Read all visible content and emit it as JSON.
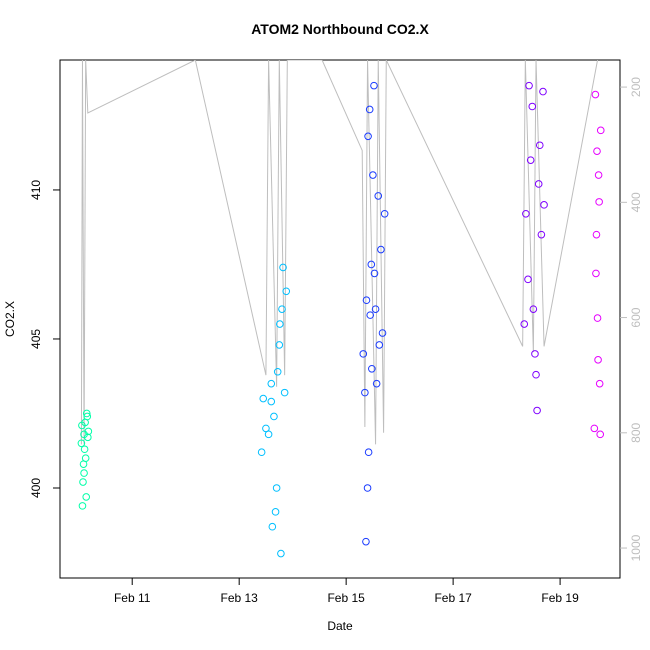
{
  "chart_data": {
    "type": "scatter",
    "title": "ATOM2 Northbound CO2.X",
    "x_label": "Date",
    "y_label": "CO2.X",
    "xlim": [
      9.65,
      20.12
    ],
    "ylim": [
      396.98,
      414.36
    ],
    "y2lim": [
      1052,
      153
    ],
    "xticks": [
      {
        "value": 11,
        "label": "Feb 11"
      },
      {
        "value": 13,
        "label": "Feb 13"
      },
      {
        "value": 15,
        "label": "Feb 15"
      },
      {
        "value": 17,
        "label": "Feb 17"
      },
      {
        "value": 19,
        "label": "Feb 19"
      }
    ],
    "yticks": [
      400,
      405,
      410
    ],
    "y2ticks": [
      200,
      400,
      600,
      800,
      1000
    ],
    "y2_color": "#bebebe",
    "series": [
      {
        "type": "line",
        "axis": "y2",
        "color": "#bebebe",
        "x": [
          10.05,
          10.07,
          10.1,
          10.13,
          10.17,
          12.18,
          13.5,
          13.55,
          13.7,
          13.75,
          13.85,
          13.9,
          14.55,
          15.3,
          15.35,
          15.4,
          15.55,
          15.6,
          15.7,
          15.75,
          18.3,
          18.35,
          18.5,
          18.55,
          18.7,
          19.7
        ],
        "values": [
          820,
          153,
          820,
          153,
          245,
          153,
          700,
          153,
          720,
          153,
          700,
          153,
          153,
          310,
          790,
          153,
          820,
          153,
          800,
          153,
          650,
          153,
          660,
          153,
          650,
          153
        ]
      },
      {
        "color": "#00ffa8",
        "x": [
          10.05,
          10.07,
          10.08,
          10.1,
          10.12,
          10.13,
          10.15,
          10.17,
          10.06,
          10.09,
          10.11,
          10.14,
          10.16,
          10.18,
          10.1
        ],
        "values": [
          401.5,
          399.4,
          400.2,
          401.8,
          402.2,
          401,
          402.5,
          401.7,
          402.1,
          400.8,
          401.3,
          399.7,
          402.4,
          401.9,
          400.5
        ]
      },
      {
        "color": "#00bfff",
        "x": [
          13.42,
          13.45,
          13.5,
          13.55,
          13.6,
          13.62,
          13.65,
          13.7,
          13.72,
          13.75,
          13.78,
          13.8,
          13.82,
          13.85,
          13.88,
          13.6,
          13.68,
          13.76
        ],
        "values": [
          401.2,
          403,
          402,
          401.8,
          403.5,
          398.7,
          402.4,
          400,
          403.9,
          404.8,
          397.8,
          406,
          407.4,
          403.2,
          406.6,
          402.9,
          399.2,
          405.5
        ]
      },
      {
        "color": "#1a3cff",
        "x": [
          15.32,
          15.35,
          15.37,
          15.4,
          15.42,
          15.45,
          15.47,
          15.5,
          15.52,
          15.55,
          15.57,
          15.6,
          15.62,
          15.65,
          15.68,
          15.72,
          15.38,
          15.41,
          15.44,
          15.48,
          15.53
        ],
        "values": [
          404.5,
          403.2,
          398.2,
          400,
          401.2,
          405.8,
          407.5,
          410.5,
          413.5,
          406,
          403.5,
          409.8,
          404.8,
          408,
          405.2,
          409.2,
          406.3,
          411.8,
          412.7,
          404,
          407.2
        ]
      },
      {
        "color": "#7f00ff",
        "x": [
          18.33,
          18.36,
          18.4,
          18.42,
          18.45,
          18.48,
          18.5,
          18.53,
          18.55,
          18.57,
          18.6,
          18.62,
          18.65,
          18.68,
          18.7
        ],
        "values": [
          405.5,
          409.2,
          407,
          413.5,
          411,
          412.8,
          406,
          404.5,
          403.8,
          402.6,
          410.2,
          411.5,
          408.5,
          413.3,
          409.5
        ]
      },
      {
        "color": "#e600ff",
        "x": [
          19.64,
          19.66,
          19.68,
          19.7,
          19.72,
          19.74,
          19.76,
          19.67,
          19.71,
          19.73,
          19.69,
          19.75
        ],
        "values": [
          402,
          413.2,
          408.5,
          405.7,
          410.5,
          403.5,
          412,
          407.2,
          404.3,
          409.6,
          411.3,
          401.8
        ]
      }
    ]
  }
}
